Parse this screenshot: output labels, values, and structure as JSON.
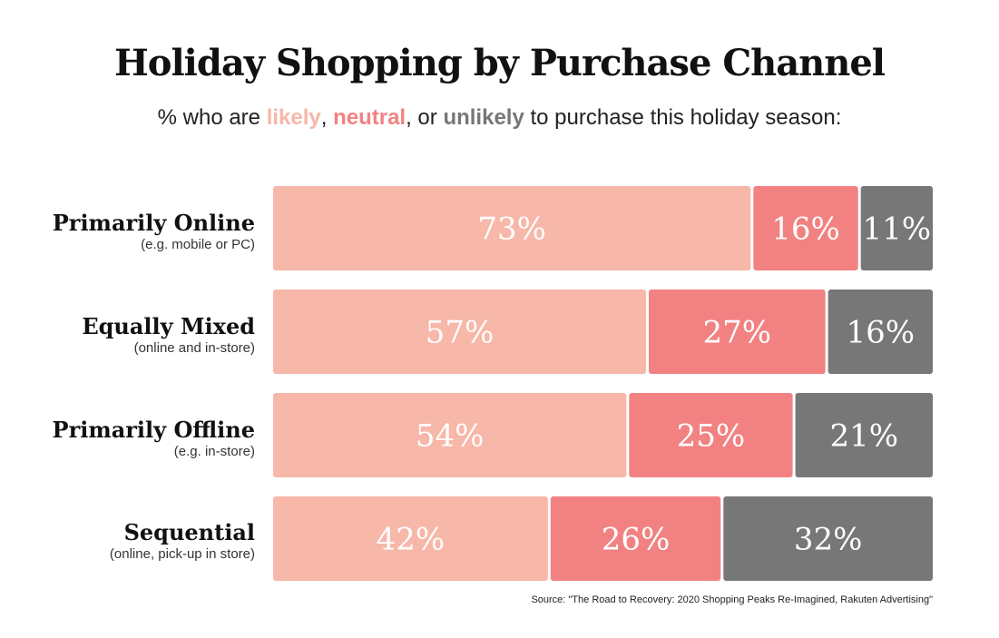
{
  "title": "Holiday Shopping by Purchase Channel",
  "subtitle": {
    "prefix": "% who are ",
    "likely": "likely",
    "sep1": ", ",
    "neutral": "neutral",
    "sep2": ", or ",
    "unlikely": "unlikely",
    "suffix": " to purchase this holiday season:"
  },
  "colors": {
    "likely": "#f7b7a9",
    "neutral": "#f28282",
    "unlikely": "#787778"
  },
  "chart_data": {
    "type": "bar",
    "orientation": "horizontal-stacked",
    "categories": [
      {
        "name": "Primarily Online",
        "note": "(e.g. mobile or PC)"
      },
      {
        "name": "Equally Mixed",
        "note": "(online and in-store)"
      },
      {
        "name": "Primarily Offline",
        "note": "(e.g. in-store)"
      },
      {
        "name": "Sequential",
        "note": "(online, pick-up in store)"
      }
    ],
    "series": [
      {
        "name": "likely",
        "values": [
          73,
          57,
          54,
          42
        ]
      },
      {
        "name": "neutral",
        "values": [
          16,
          27,
          25,
          26
        ]
      },
      {
        "name": "unlikely",
        "values": [
          11,
          16,
          21,
          32
        ]
      }
    ],
    "labels": [
      [
        "73%",
        "16%",
        "11%"
      ],
      [
        "57%",
        "27%",
        "16%"
      ],
      [
        "54%",
        "25%",
        "21%"
      ],
      [
        "42%",
        "26%",
        "32%"
      ]
    ]
  },
  "source": "Source:  \"The Road to Recovery: 2020 Shopping Peaks Re-Imagined, Rakuten Advertising\""
}
